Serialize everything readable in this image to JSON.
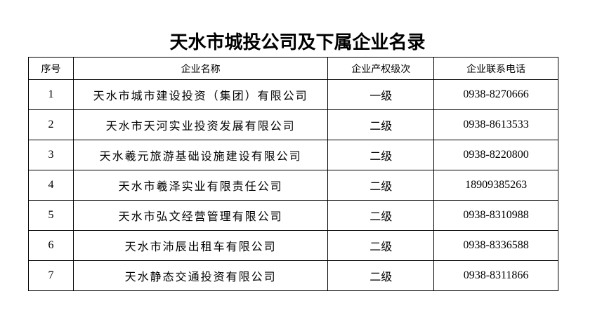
{
  "title": "天水市城投公司及下属企业名录",
  "table": {
    "headers": [
      "序号",
      "企业名称",
      "企业产权级次",
      "企业联系电话"
    ],
    "rows": [
      {
        "no": "1",
        "name": "天水市城市建设投资（集团）有限公司",
        "level": "一级",
        "phone": "0938-8270666"
      },
      {
        "no": "2",
        "name": "天水市天河实业投资发展有限公司",
        "level": "二级",
        "phone": "0938-8613533"
      },
      {
        "no": "3",
        "name": "天水羲元旅游基础设施建设有限公司",
        "level": "二级",
        "phone": "0938-8220800"
      },
      {
        "no": "4",
        "name": "天水市羲泽实业有限责任公司",
        "level": "二级",
        "phone": "18909385263"
      },
      {
        "no": "5",
        "name": "天水市弘文经营管理有限公司",
        "level": "二级",
        "phone": "0938-8310988"
      },
      {
        "no": "6",
        "name": "天水市沛辰出租车有限公司",
        "level": "二级",
        "phone": "0938-8336588"
      },
      {
        "no": "7",
        "name": "天水静态交通投资有限公司",
        "level": "二级",
        "phone": "0938-8311866"
      }
    ]
  }
}
